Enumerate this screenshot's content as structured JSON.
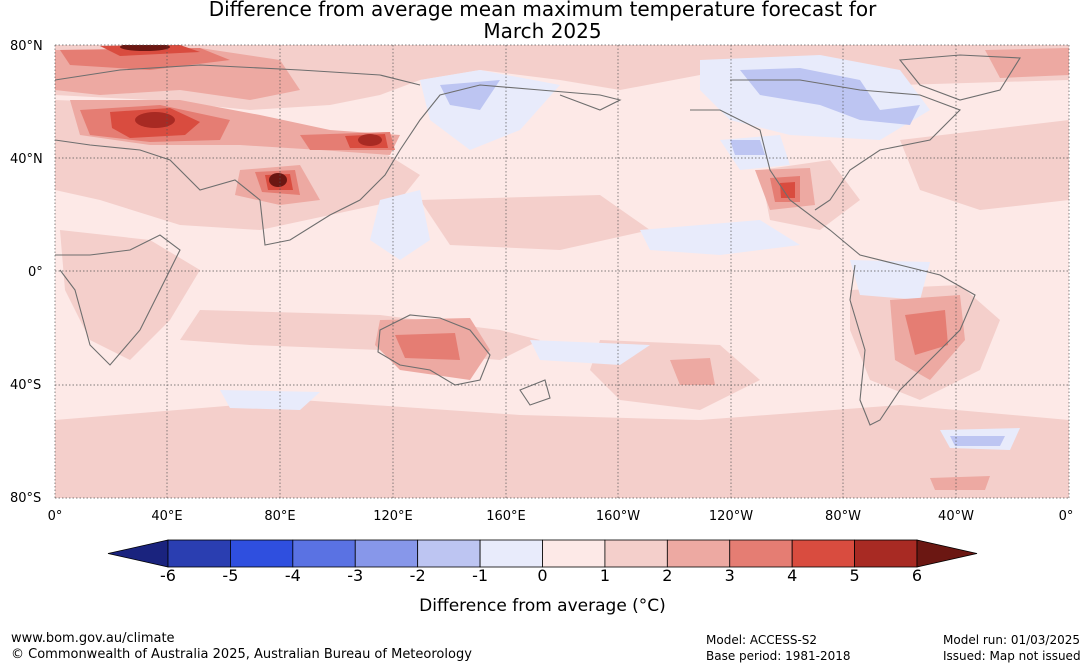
{
  "title_line1": "Difference from average mean maximum temperature forecast for",
  "title_line2": "March 2025",
  "lat_labels": [
    "80°N",
    "40°N",
    "0°",
    "40°S",
    "80°S"
  ],
  "lon_labels": [
    "0°",
    "40°E",
    "80°E",
    "120°E",
    "160°E",
    "160°W",
    "120°W",
    "80°W",
    "40°W",
    "0°"
  ],
  "colorbar": {
    "ticks": [
      "-6",
      "-5",
      "-4",
      "-3",
      "-2",
      "-1",
      "0",
      "1",
      "2",
      "3",
      "4",
      "5",
      "6"
    ],
    "label": "Difference from average (°C)",
    "colors": [
      "#1a237e",
      "#2a3eb1",
      "#2f4fdf",
      "#5a72e3",
      "#8797ea",
      "#bdc5f2",
      "#e8ebfb",
      "#fde9e7",
      "#f4cfcb",
      "#eda9a2",
      "#e57d73",
      "#d94c3f",
      "#a82a23",
      "#6b1712"
    ]
  },
  "footer": {
    "website": "www.bom.gov.au/climate",
    "copyright": "© Commonwealth of Australia 2025, Australian Bureau of Meteorology",
    "model": "Model: ACCESS-S2",
    "base_period": "Base period: 1981-2018",
    "model_run": "Model run: 01/03/2025",
    "issued": "Issued: Map not issued"
  }
}
